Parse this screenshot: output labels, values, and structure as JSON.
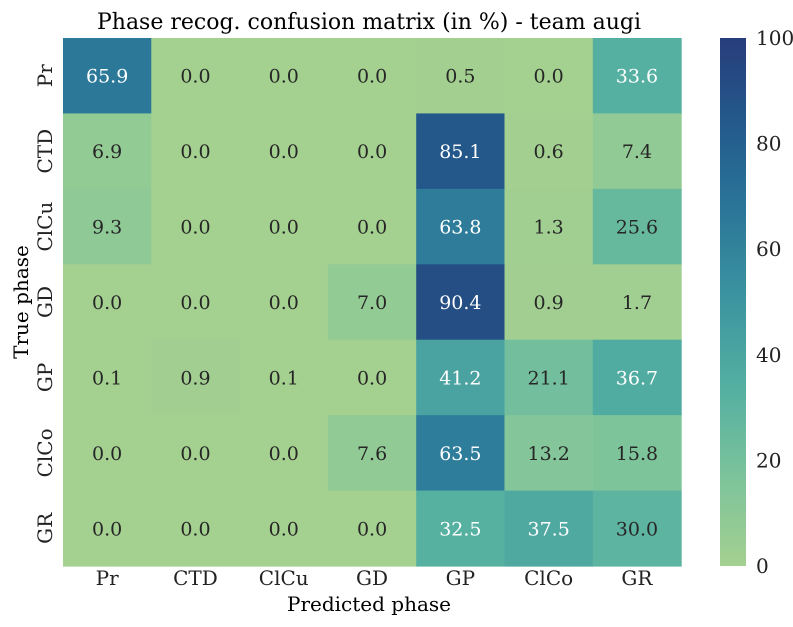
{
  "chart_data": {
    "type": "heatmap",
    "title": "Phase recog. confusion matrix (in %) - team augi",
    "xlabel": "Predicted phase",
    "ylabel": "True phase",
    "x_categories": [
      "Pr",
      "CTD",
      "ClCu",
      "GD",
      "GP",
      "ClCo",
      "GR"
    ],
    "y_categories": [
      "Pr",
      "CTD",
      "ClCu",
      "GD",
      "GP",
      "ClCo",
      "GR"
    ],
    "values": [
      [
        65.9,
        0.0,
        0.0,
        0.0,
        0.5,
        0.0,
        33.6
      ],
      [
        6.9,
        0.0,
        0.0,
        0.0,
        85.1,
        0.6,
        7.4
      ],
      [
        9.3,
        0.0,
        0.0,
        0.0,
        63.8,
        1.3,
        25.6
      ],
      [
        0.0,
        0.0,
        0.0,
        7.0,
        90.4,
        0.9,
        1.7
      ],
      [
        0.1,
        0.9,
        0.1,
        0.0,
        41.2,
        21.1,
        36.7
      ],
      [
        0.0,
        0.0,
        0.0,
        7.6,
        63.5,
        13.2,
        15.8
      ],
      [
        0.0,
        0.0,
        0.0,
        0.0,
        32.5,
        37.5,
        30.0
      ]
    ],
    "colorbar": {
      "min": 0,
      "max": 100,
      "ticks": [
        "0",
        "20",
        "40",
        "60",
        "80",
        "100"
      ],
      "colormap": "crest",
      "colors": [
        "#a4d090",
        "#7cc39b",
        "#55b0a1",
        "#3d95a0",
        "#2b7799",
        "#235b8d",
        "#283d7b"
      ]
    },
    "legend": "right"
  }
}
